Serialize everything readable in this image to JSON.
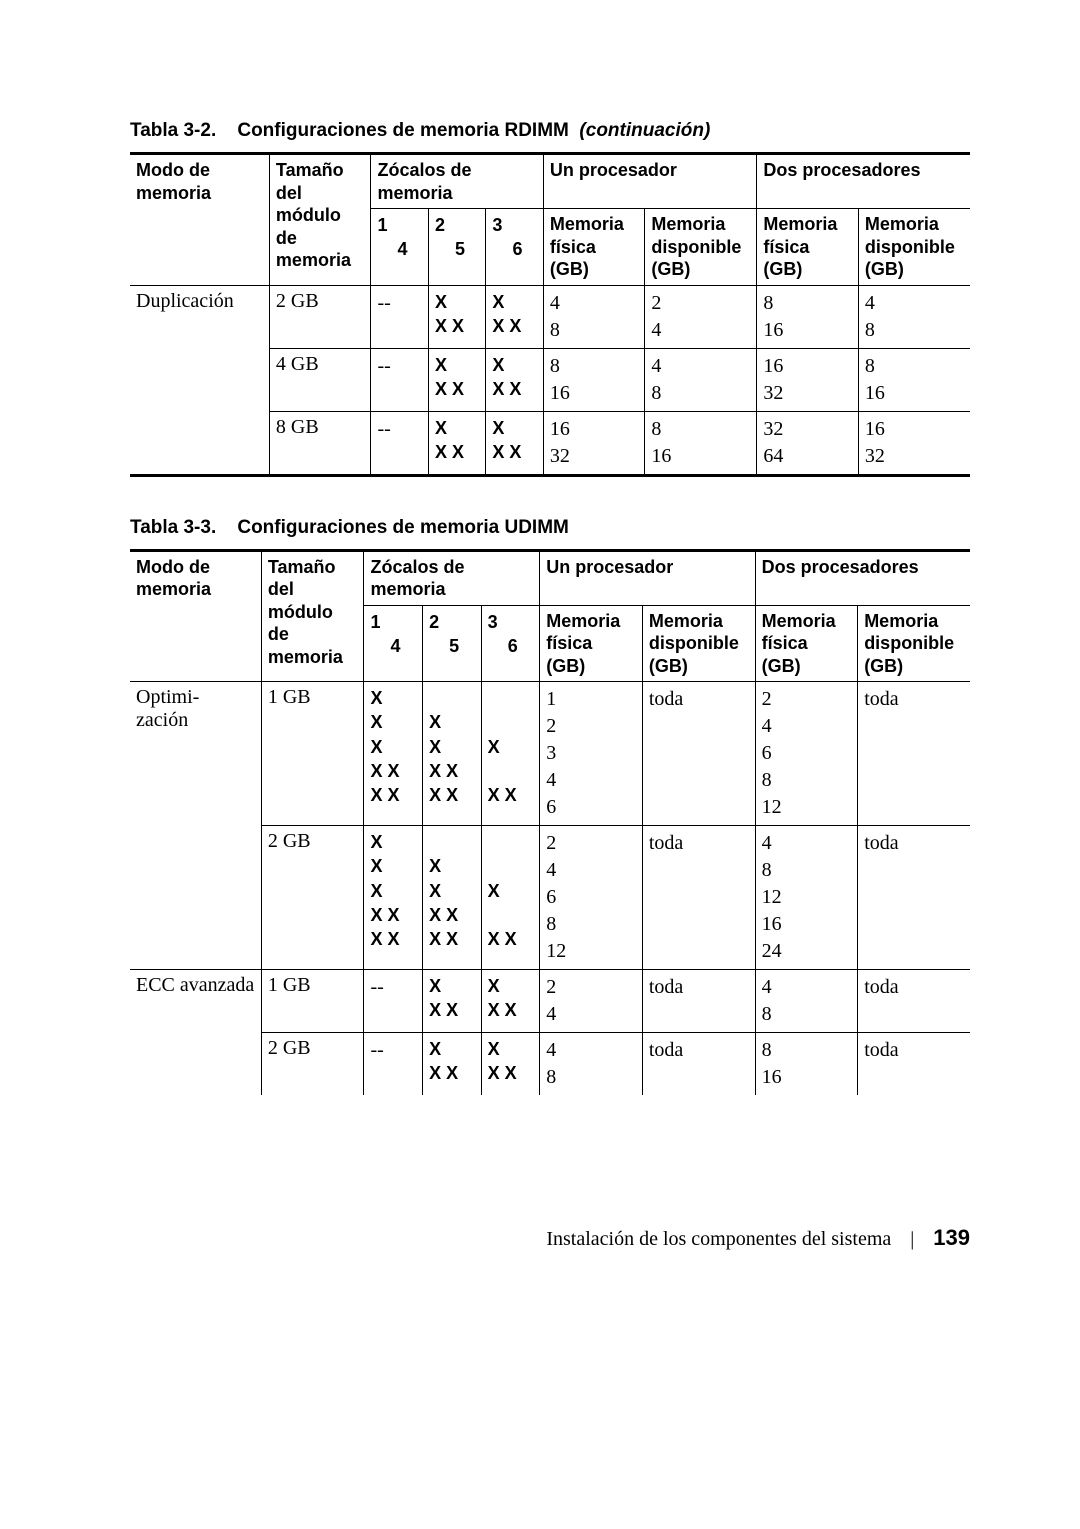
{
  "table1": {
    "caption_prefix": "Tabla 3-2.",
    "caption_title": "Configuraciones de memoria RDIMM",
    "caption_suffix": "(continuación)",
    "headers": {
      "modo": "Modo de memoria",
      "tamano": "Tamaño del módulo de memoria",
      "zocalos": "Zócalos de memoria",
      "un_proc": "Un procesador",
      "dos_proc": "Dos procesadores",
      "mem_fisica": "Memoria física (GB)",
      "mem_disp": "Memoria disponible (GB)",
      "s1": "1",
      "s4": "4",
      "s2": "2",
      "s5": "5",
      "s3": "3",
      "s6": "6"
    },
    "rows": [
      {
        "modo": "Duplicación",
        "size": "2 GB",
        "slot1": "--",
        "pat2": [
          "X",
          "X X"
        ],
        "pat3": [
          "X",
          "X X"
        ],
        "p1f": [
          "4",
          "8"
        ],
        "p1d": [
          "2",
          "4"
        ],
        "p2f": [
          "8",
          "16"
        ],
        "p2d": [
          "4",
          "8"
        ]
      },
      {
        "modo": "",
        "size": "4 GB",
        "slot1": "--",
        "pat2": [
          "X",
          "X X"
        ],
        "pat3": [
          "X",
          "X X"
        ],
        "p1f": [
          "8",
          "16"
        ],
        "p1d": [
          "4",
          "8"
        ],
        "p2f": [
          "16",
          "32"
        ],
        "p2d": [
          "8",
          "16"
        ]
      },
      {
        "modo": "",
        "size": "8 GB",
        "slot1": "--",
        "pat2": [
          "X",
          "X X"
        ],
        "pat3": [
          "X",
          "X X"
        ],
        "p1f": [
          "16",
          "32"
        ],
        "p1d": [
          "8",
          "16"
        ],
        "p2f": [
          "32",
          "64"
        ],
        "p2d": [
          "16",
          "32"
        ]
      }
    ]
  },
  "table2": {
    "caption_prefix": "Tabla 3-3.",
    "caption_title": "Configuraciones de memoria UDIMM",
    "headers": {
      "modo": "Modo de memoria",
      "tamano": "Tamaño del módulo de memoria",
      "zocalos": "Zócalos de memoria",
      "un_proc": "Un procesador",
      "dos_proc": "Dos procesadores",
      "mem_fisica": "Memoria física (GB)",
      "mem_disp": "Memoria disponible (GB)",
      "s1": "1",
      "s4": "4",
      "s2": "2",
      "s5": "5",
      "s3": "3",
      "s6": "6"
    },
    "rows": [
      {
        "modo": "Optimi-zación",
        "size": "1 GB",
        "pat1": [
          "X",
          "X",
          "X",
          "X X",
          "X X"
        ],
        "pat2": [
          "",
          "X",
          "X",
          "X X",
          "X X"
        ],
        "pat3": [
          "",
          "",
          "X",
          "",
          "X X"
        ],
        "p1f": [
          "1",
          "2",
          "3",
          "4",
          "6"
        ],
        "p1d": [
          "toda"
        ],
        "p2f": [
          "2",
          "4",
          "6",
          "8",
          "12"
        ],
        "p2d": [
          "toda"
        ]
      },
      {
        "modo": "",
        "size": "2 GB",
        "pat1": [
          "X",
          "X",
          "X",
          "X X",
          "X X"
        ],
        "pat2": [
          "",
          "X",
          "X",
          "X X",
          "X X"
        ],
        "pat3": [
          "",
          "",
          "X",
          "",
          "X X"
        ],
        "p1f": [
          "2",
          "4",
          "6",
          "8",
          "12"
        ],
        "p1d": [
          "toda"
        ],
        "p2f": [
          "4",
          "8",
          "12",
          "16",
          "24"
        ],
        "p2d": [
          "toda"
        ]
      },
      {
        "modo": "ECC avanzada",
        "size": "1 GB",
        "slot1": "--",
        "pat2": [
          "X",
          "X X"
        ],
        "pat3": [
          "X",
          "X X"
        ],
        "p1f": [
          "2",
          "4"
        ],
        "p1d": [
          "toda"
        ],
        "p2f": [
          "4",
          "8"
        ],
        "p2d": [
          "toda"
        ]
      },
      {
        "modo": "",
        "size": "2 GB",
        "slot1": "--",
        "pat2": [
          "X",
          "X X"
        ],
        "pat3": [
          "X",
          "X X"
        ],
        "p1f": [
          "4",
          "8"
        ],
        "p1d": [
          "toda"
        ],
        "p2f": [
          "8",
          "16"
        ],
        "p2d": [
          "toda"
        ]
      }
    ]
  },
  "footer": {
    "text": "Instalación de los componentes del sistema",
    "page": "139"
  }
}
